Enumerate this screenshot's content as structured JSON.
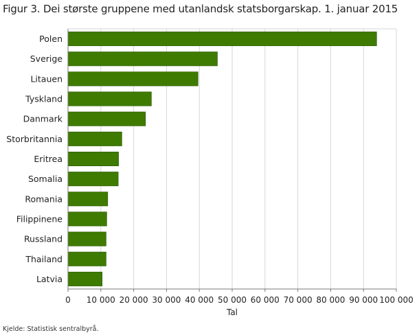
{
  "title": "Figur 3. Dei største gruppene med utanlandsk statsborgarskap. 1. januar 2015",
  "source": "Kjelde: Statistisk sentralbyrå.",
  "colors": {
    "bar": "#3e7b00",
    "bar_stroke": "#2a5600",
    "grid": "#d6d6d6",
    "axis": "#777777"
  },
  "chart_data": {
    "type": "bar",
    "orientation": "horizontal",
    "title": "Figur 3. Dei største gruppene med utanlandsk statsborgarskap. 1. januar 2015",
    "xlabel": "Tal",
    "ylabel": "",
    "xlim": [
      0,
      100000
    ],
    "xticks": [
      0,
      10000,
      20000,
      30000,
      40000,
      50000,
      60000,
      70000,
      80000,
      90000,
      100000
    ],
    "xtick_labels": [
      "0",
      "10 000",
      "20 000",
      "30 000",
      "40 000",
      "50 000",
      "60 000",
      "70 000",
      "80 000",
      "90 000",
      "100 000"
    ],
    "grid": true,
    "categories": [
      "Polen",
      "Sverige",
      "Litauen",
      "Tyskland",
      "Danmark",
      "Storbritannia",
      "Eritrea",
      "Somalia",
      "Romania",
      "Filippinene",
      "Russland",
      "Thailand",
      "Latvia"
    ],
    "values": [
      94000,
      45500,
      39600,
      25400,
      23600,
      16400,
      15400,
      15300,
      12100,
      11800,
      11600,
      11600,
      10400
    ]
  }
}
